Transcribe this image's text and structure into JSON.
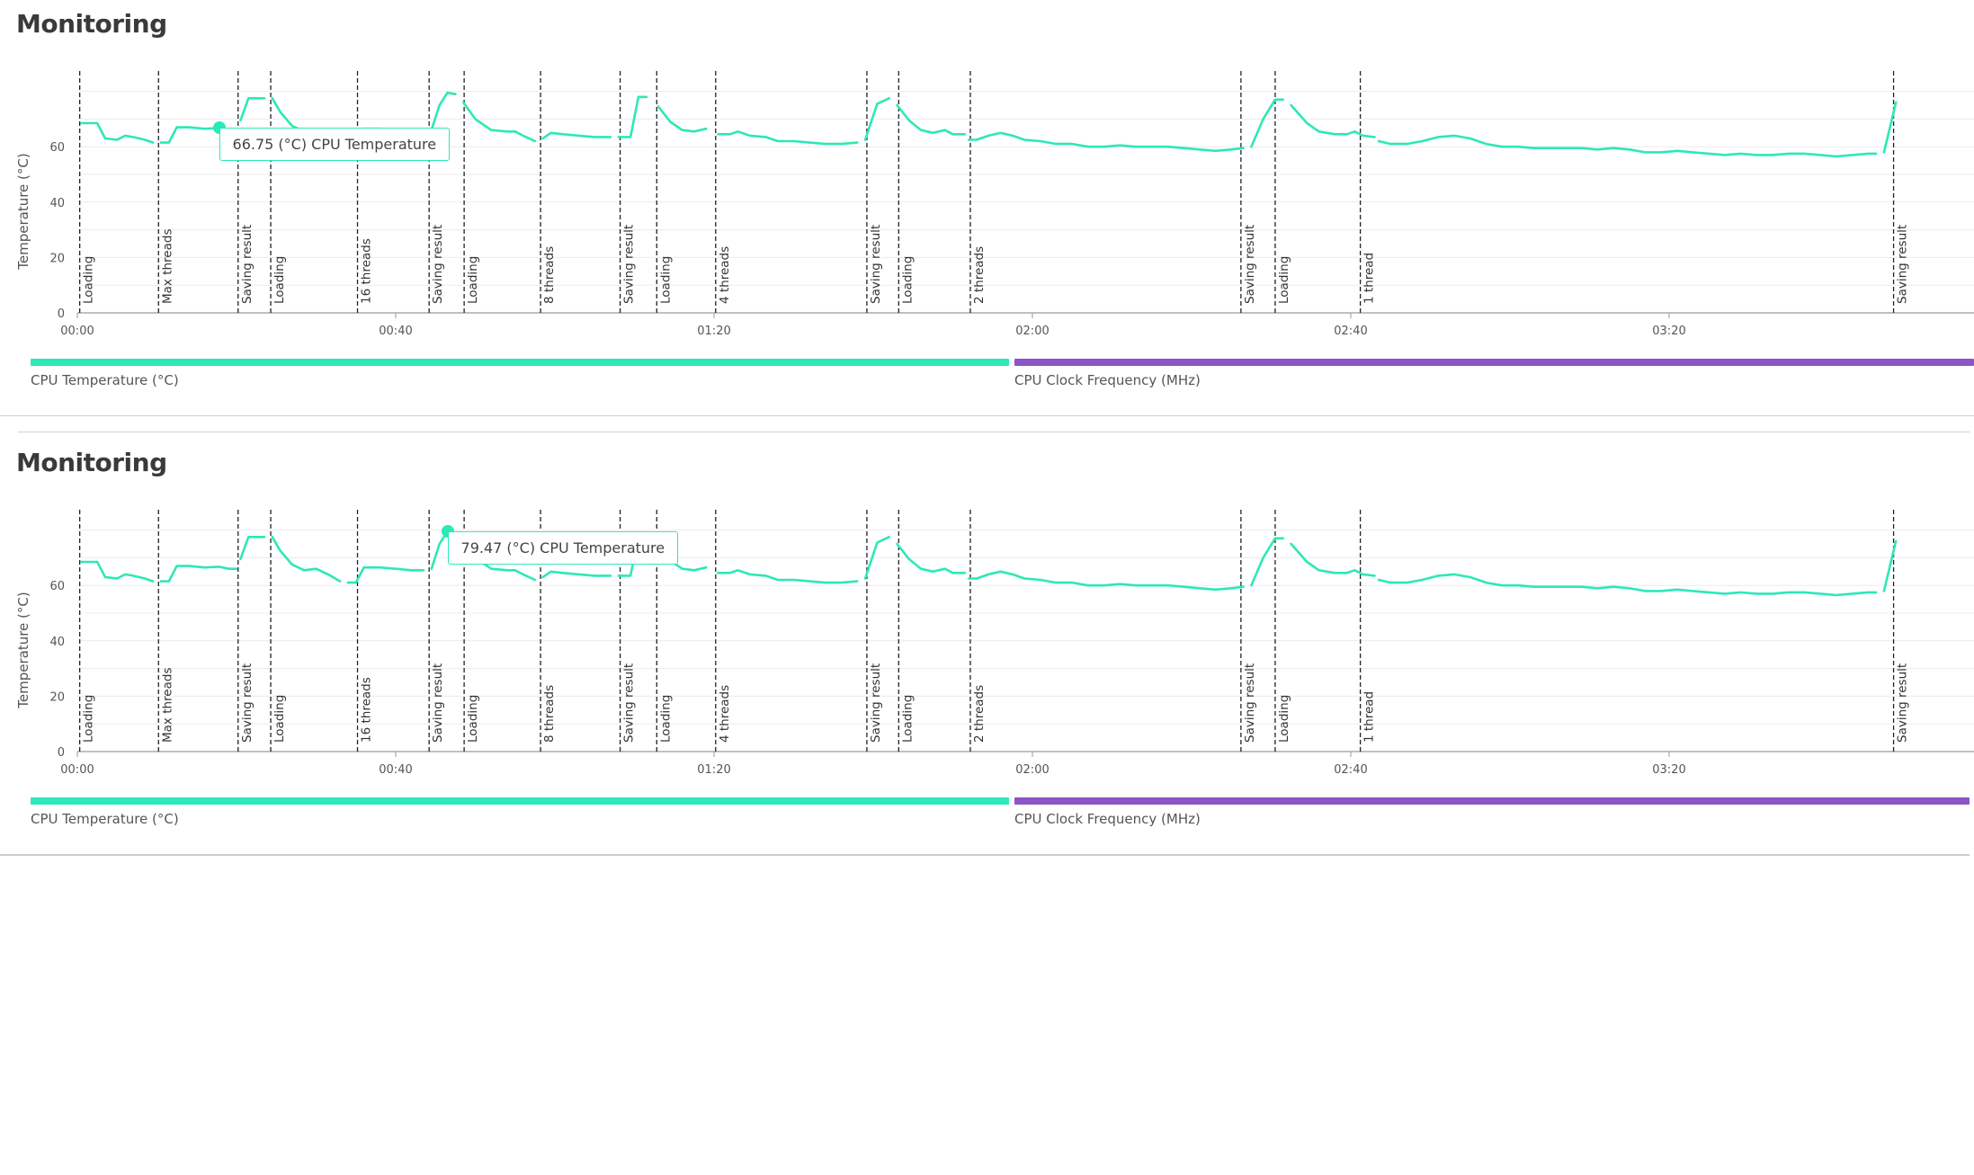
{
  "panels": [
    {
      "title": "Monitoring",
      "tooltip": {
        "text": "66.75 (°C) CPU Temperature",
        "time": 17.8,
        "value": 66.75
      },
      "legend": [
        {
          "label": "CPU Temperature (°C)",
          "color": "#2de8b7"
        },
        {
          "label": "CPU Clock Frequency (MHz)",
          "color": "#8a55c7"
        }
      ]
    },
    {
      "title": "Monitoring",
      "tooltip": {
        "text": "79.47 (°C) CPU Temperature",
        "time": 46.5,
        "value": 79.47
      },
      "legend": [
        {
          "label": "CPU Temperature (°C)",
          "color": "#2de8b7"
        },
        {
          "label": "CPU Clock Frequency (MHz)",
          "color": "#8a55c7"
        }
      ]
    }
  ],
  "chart_data": {
    "type": "line",
    "ylabel": "Temperature (°C)",
    "y_ticks": [
      0,
      20,
      40,
      60
    ],
    "x_ticks": [
      "00:00",
      "00:40",
      "01:20",
      "02:00",
      "02:40",
      "03:20"
    ],
    "x_tick_seconds": [
      0,
      40,
      80,
      120,
      160,
      200
    ],
    "ylim": [
      0,
      85
    ],
    "grid": true,
    "series": [
      {
        "name": "CPU Temperature (°C)",
        "color": "#2de8b7",
        "segments": [
          [
            [
              0.5,
              68.5
            ],
            [
              2.5,
              68.5
            ],
            [
              3.5,
              63
            ],
            [
              5,
              62.5
            ],
            [
              6,
              64
            ],
            [
              7,
              63.5
            ],
            [
              8.5,
              62.5
            ],
            [
              9.5,
              61.5
            ]
          ],
          [
            [
              10.5,
              61.5
            ],
            [
              11.5,
              61.5
            ],
            [
              12.5,
              67
            ],
            [
              14,
              67
            ],
            [
              16,
              66.5
            ],
            [
              17.8,
              66.75
            ],
            [
              19,
              66
            ],
            [
              20,
              66
            ]
          ],
          [
            [
              20.5,
              69.5
            ],
            [
              21.5,
              77.5
            ],
            [
              23.5,
              77.5
            ]
          ],
          [
            [
              24.5,
              77.5
            ],
            [
              25.5,
              72.5
            ],
            [
              27,
              67.5
            ],
            [
              28.5,
              65.5
            ],
            [
              30,
              66
            ],
            [
              31.5,
              64
            ],
            [
              33,
              61.5
            ]
          ],
          [
            [
              34,
              61
            ],
            [
              35,
              61
            ],
            [
              36,
              66.5
            ],
            [
              38,
              66.5
            ],
            [
              40,
              66
            ],
            [
              42,
              65.5
            ],
            [
              43.5,
              65.5
            ]
          ],
          [
            [
              44.5,
              66
            ],
            [
              45.5,
              75
            ],
            [
              46.5,
              79.47
            ],
            [
              47.5,
              79
            ]
          ],
          [
            [
              48.5,
              76
            ],
            [
              50,
              70
            ],
            [
              52,
              66
            ],
            [
              54,
              65.5
            ],
            [
              55,
              65.5
            ],
            [
              56,
              64
            ],
            [
              57.5,
              62
            ]
          ],
          [
            [
              58.5,
              63
            ],
            [
              59.5,
              65
            ],
            [
              61,
              64.5
            ],
            [
              63,
              64
            ],
            [
              65,
              63.5
            ],
            [
              67,
              63.5
            ]
          ],
          [
            [
              68,
              63.5
            ],
            [
              69.5,
              63.5
            ],
            [
              70.5,
              78
            ],
            [
              71.5,
              78
            ]
          ],
          [
            [
              73,
              74.5
            ],
            [
              74.5,
              69
            ],
            [
              76,
              66
            ],
            [
              77.5,
              65.5
            ],
            [
              79,
              66.5
            ]
          ],
          [
            [
              80.5,
              64.5
            ],
            [
              82,
              64.5
            ],
            [
              83,
              65.5
            ],
            [
              84.5,
              64
            ],
            [
              86.5,
              63.5
            ],
            [
              88,
              62
            ],
            [
              90,
              62
            ],
            [
              92,
              61.5
            ],
            [
              94,
              61
            ],
            [
              96,
              61
            ],
            [
              98,
              61.5
            ]
          ],
          [
            [
              99,
              62.5
            ],
            [
              100.5,
              75.5
            ],
            [
              102,
              77.5
            ]
          ],
          [
            [
              103,
              75
            ],
            [
              104.5,
              69.5
            ],
            [
              106,
              66
            ],
            [
              107.5,
              65
            ],
            [
              109,
              66
            ],
            [
              110,
              64.5
            ],
            [
              111.5,
              64.5
            ]
          ],
          [
            [
              112,
              62.5
            ],
            [
              113,
              62.5
            ],
            [
              114.5,
              64
            ],
            [
              116,
              65
            ],
            [
              117.5,
              64
            ],
            [
              119,
              62.5
            ],
            [
              121,
              62
            ],
            [
              123,
              61
            ],
            [
              125,
              61
            ],
            [
              127,
              60
            ],
            [
              129,
              60
            ],
            [
              131,
              60.5
            ],
            [
              133,
              60
            ],
            [
              135,
              60
            ],
            [
              137,
              60
            ],
            [
              139,
              59.5
            ],
            [
              141,
              59
            ],
            [
              143,
              58.5
            ],
            [
              145,
              59
            ],
            [
              146.5,
              59.5
            ]
          ],
          [
            [
              147.5,
              60
            ],
            [
              149,
              70
            ],
            [
              150.5,
              77
            ],
            [
              151.5,
              77
            ]
          ],
          [
            [
              152.5,
              75
            ],
            [
              154.5,
              68.5
            ],
            [
              156,
              65.5
            ],
            [
              158,
              64.5
            ],
            [
              159.5,
              64.5
            ],
            [
              160.5,
              65.5
            ],
            [
              161.5,
              64
            ],
            [
              163,
              63.5
            ]
          ],
          [
            [
              163.5,
              62
            ],
            [
              165,
              61
            ],
            [
              167,
              61
            ],
            [
              169,
              62
            ],
            [
              171,
              63.5
            ],
            [
              173,
              64
            ],
            [
              175,
              63
            ],
            [
              177,
              61
            ],
            [
              179,
              60
            ],
            [
              181,
              60
            ],
            [
              183,
              59.5
            ],
            [
              185,
              59.5
            ],
            [
              187,
              59.5
            ],
            [
              189,
              59.5
            ],
            [
              191,
              59
            ],
            [
              193,
              59.5
            ],
            [
              195,
              59
            ],
            [
              197,
              58
            ],
            [
              199,
              58
            ],
            [
              201,
              58.5
            ],
            [
              203,
              58
            ],
            [
              205,
              57.5
            ],
            [
              207,
              57
            ],
            [
              209,
              57.5
            ],
            [
              211,
              57
            ],
            [
              213,
              57
            ],
            [
              215,
              57.5
            ],
            [
              217,
              57.5
            ],
            [
              219,
              57
            ],
            [
              221,
              56.5
            ],
            [
              223,
              57
            ],
            [
              225,
              57.5
            ],
            [
              226,
              57.5
            ]
          ],
          [
            [
              227,
              58
            ],
            [
              228.5,
              76
            ]
          ]
        ]
      }
    ],
    "annotations": [
      {
        "t": 0.3,
        "label": "Loading"
      },
      {
        "t": 10.2,
        "label": "Max threads"
      },
      {
        "t": 20.2,
        "label": "Saving result"
      },
      {
        "t": 24.3,
        "label": "Loading"
      },
      {
        "t": 35.2,
        "label": "16 threads"
      },
      {
        "t": 44.2,
        "label": "Saving result"
      },
      {
        "t": 48.6,
        "label": "Loading"
      },
      {
        "t": 58.2,
        "label": "8 threads"
      },
      {
        "t": 68.2,
        "label": "Saving result"
      },
      {
        "t": 72.8,
        "label": "Loading"
      },
      {
        "t": 80.2,
        "label": "4 threads"
      },
      {
        "t": 99.2,
        "label": "Saving result"
      },
      {
        "t": 103.2,
        "label": "Loading"
      },
      {
        "t": 112.2,
        "label": "2 threads"
      },
      {
        "t": 146.2,
        "label": "Saving result"
      },
      {
        "t": 150.5,
        "label": "Loading"
      },
      {
        "t": 161.2,
        "label": "1 thread"
      },
      {
        "t": 228.2,
        "label": "Saving result"
      }
    ]
  }
}
